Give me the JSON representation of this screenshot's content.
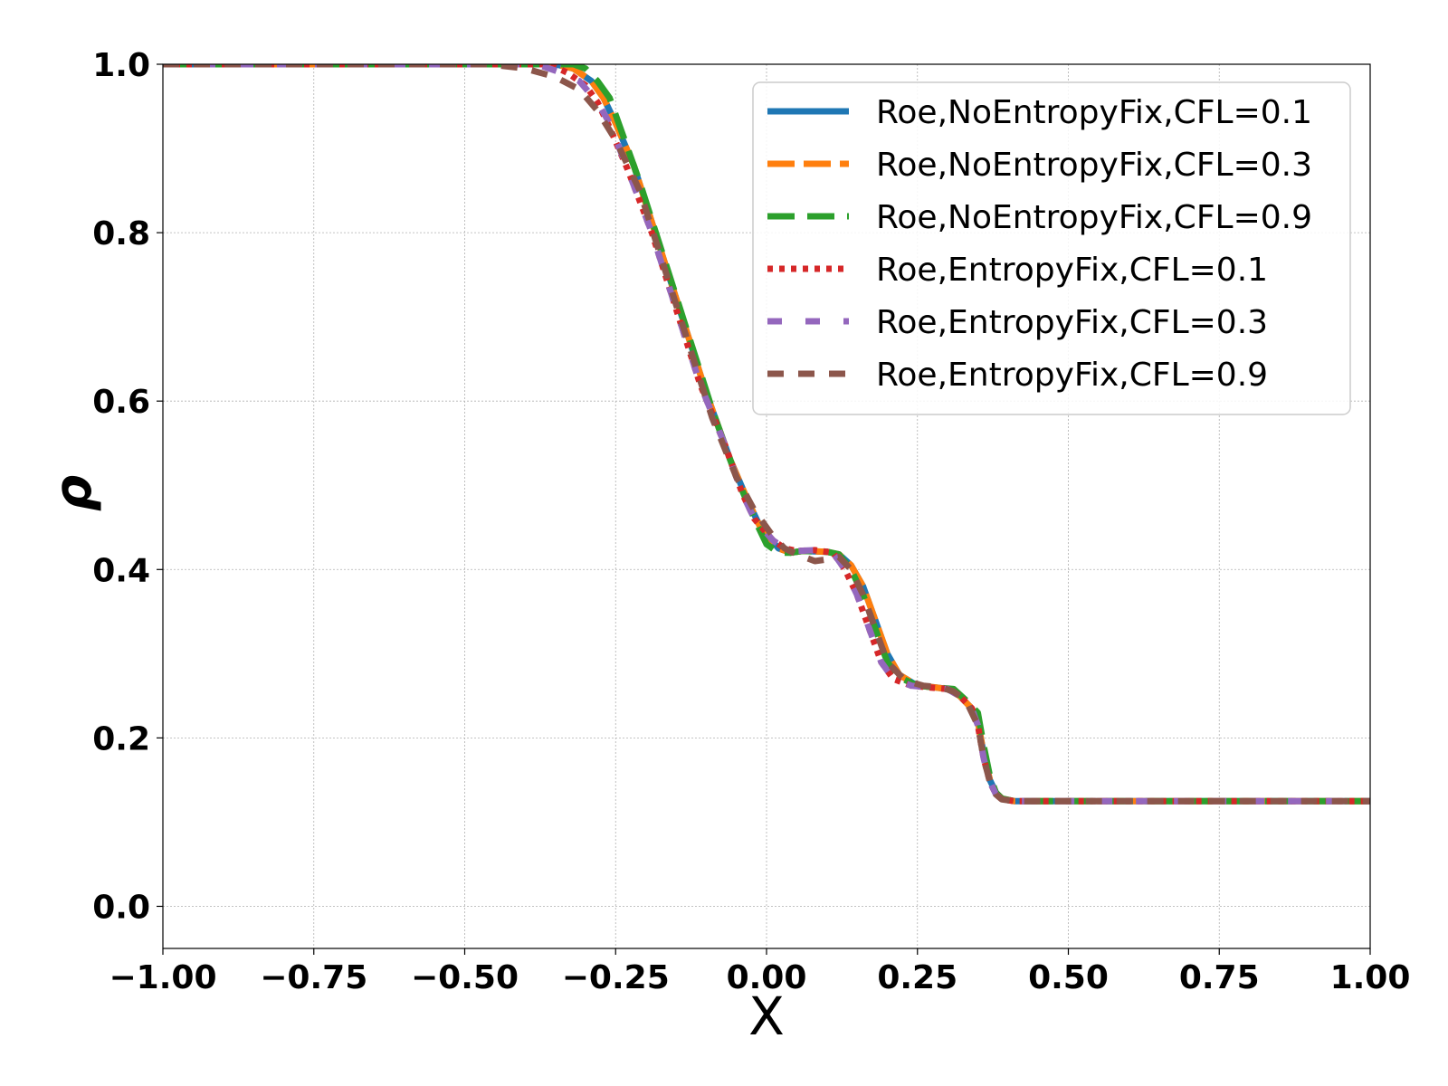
{
  "chart_data": {
    "type": "line",
    "xlabel": "X",
    "ylabel": "ρ",
    "xlim": [
      -1.0,
      1.0
    ],
    "ylim": [
      -0.05,
      1.0
    ],
    "grid": true,
    "legend_position": "top-right",
    "xticks": [
      "−1.00",
      "−0.75",
      "−0.50",
      "−0.25",
      "0.00",
      "0.25",
      "0.50",
      "0.75",
      "1.00"
    ],
    "xtick_values": [
      -1.0,
      -0.75,
      -0.5,
      -0.25,
      0.0,
      0.25,
      0.5,
      0.75,
      1.0
    ],
    "yticks": [
      "0.0",
      "0.2",
      "0.4",
      "0.6",
      "0.8",
      "1.0"
    ],
    "ytick_values": [
      0.0,
      0.2,
      0.4,
      0.6,
      0.8,
      1.0
    ],
    "series": [
      {
        "name": "Roe,NoEntropyFix,CFL=0.1",
        "color": "#1f77b4",
        "style": "solid",
        "x": [
          -1.0,
          -0.35,
          -0.32,
          -0.29,
          -0.27,
          -0.25,
          -0.22,
          -0.18,
          -0.14,
          -0.1,
          -0.06,
          -0.03,
          -0.01,
          0.02,
          0.04,
          0.06,
          0.1,
          0.12,
          0.14,
          0.16,
          0.18,
          0.2,
          0.22,
          0.25,
          0.28,
          0.3,
          0.32,
          0.34,
          0.35,
          0.36,
          0.37,
          0.38,
          0.39,
          0.41,
          0.43,
          1.0
        ],
        "y": [
          1.0,
          1.0,
          0.995,
          0.98,
          0.96,
          0.93,
          0.88,
          0.79,
          0.7,
          0.61,
          0.53,
          0.48,
          0.45,
          0.425,
          0.42,
          0.422,
          0.421,
          0.418,
          0.405,
          0.38,
          0.34,
          0.3,
          0.275,
          0.262,
          0.26,
          0.258,
          0.25,
          0.235,
          0.22,
          0.18,
          0.15,
          0.135,
          0.128,
          0.125,
          0.125,
          0.125
        ]
      },
      {
        "name": "Roe,NoEntropyFix,CFL=0.3",
        "color": "#ff7f0e",
        "style": "dashdot",
        "x": [
          -1.0,
          -0.35,
          -0.32,
          -0.29,
          -0.27,
          -0.25,
          -0.22,
          -0.18,
          -0.14,
          -0.1,
          -0.06,
          -0.03,
          -0.01,
          0.02,
          0.04,
          0.06,
          0.1,
          0.12,
          0.14,
          0.16,
          0.18,
          0.2,
          0.22,
          0.25,
          0.28,
          0.3,
          0.32,
          0.34,
          0.35,
          0.36,
          0.37,
          0.38,
          0.39,
          0.41,
          0.43,
          1.0
        ],
        "y": [
          1.0,
          1.0,
          0.995,
          0.98,
          0.96,
          0.93,
          0.88,
          0.79,
          0.7,
          0.61,
          0.53,
          0.48,
          0.45,
          0.425,
          0.42,
          0.422,
          0.421,
          0.418,
          0.405,
          0.38,
          0.34,
          0.3,
          0.275,
          0.262,
          0.26,
          0.258,
          0.25,
          0.235,
          0.22,
          0.18,
          0.15,
          0.135,
          0.128,
          0.125,
          0.125,
          0.125
        ]
      },
      {
        "name": "Roe,NoEntropyFix,CFL=0.9",
        "color": "#2ca02c",
        "style": "dashed",
        "x": [
          -1.0,
          -0.32,
          -0.3,
          -0.28,
          -0.26,
          -0.24,
          -0.21,
          -0.17,
          -0.13,
          -0.09,
          -0.05,
          -0.02,
          0.0,
          0.02,
          0.04,
          0.06,
          0.1,
          0.12,
          0.14,
          0.16,
          0.18,
          0.2,
          0.22,
          0.25,
          0.28,
          0.31,
          0.33,
          0.35,
          0.36,
          0.37,
          0.38,
          0.39,
          0.41,
          0.43,
          1.0
        ],
        "y": [
          1.0,
          1.0,
          0.995,
          0.98,
          0.96,
          0.92,
          0.86,
          0.77,
          0.68,
          0.59,
          0.51,
          0.46,
          0.43,
          0.42,
          0.42,
          0.422,
          0.421,
          0.418,
          0.4,
          0.37,
          0.33,
          0.29,
          0.272,
          0.262,
          0.26,
          0.258,
          0.245,
          0.23,
          0.19,
          0.155,
          0.135,
          0.128,
          0.125,
          0.125,
          0.125
        ]
      },
      {
        "name": "Roe,EntropyFix,CFL=0.1",
        "color": "#d62728",
        "style": "dotted",
        "x": [
          -1.0,
          -0.36,
          -0.33,
          -0.3,
          -0.28,
          -0.26,
          -0.23,
          -0.19,
          -0.15,
          -0.11,
          -0.07,
          -0.04,
          -0.02,
          0.01,
          0.03,
          0.05,
          0.08,
          0.11,
          0.13,
          0.15,
          0.17,
          0.19,
          0.21,
          0.24,
          0.27,
          0.3,
          0.32,
          0.34,
          0.35,
          0.36,
          0.37,
          0.38,
          0.39,
          0.41,
          0.43,
          1.0
        ],
        "y": [
          1.0,
          1.0,
          0.99,
          0.975,
          0.955,
          0.925,
          0.875,
          0.8,
          0.71,
          0.62,
          0.55,
          0.49,
          0.46,
          0.435,
          0.425,
          0.422,
          0.423,
          0.42,
          0.4,
          0.37,
          0.33,
          0.29,
          0.27,
          0.262,
          0.26,
          0.258,
          0.25,
          0.235,
          0.215,
          0.175,
          0.148,
          0.133,
          0.127,
          0.125,
          0.125,
          0.125
        ]
      },
      {
        "name": "Roe,EntropyFix,CFL=0.3",
        "color": "#9467bd",
        "style": "dashed",
        "x": [
          -1.0,
          -0.38,
          -0.34,
          -0.31,
          -0.28,
          -0.26,
          -0.23,
          -0.19,
          -0.15,
          -0.11,
          -0.07,
          -0.04,
          -0.02,
          0.01,
          0.03,
          0.05,
          0.08,
          0.11,
          0.13,
          0.15,
          0.17,
          0.19,
          0.21,
          0.24,
          0.27,
          0.3,
          0.32,
          0.34,
          0.35,
          0.36,
          0.37,
          0.38,
          0.39,
          0.41,
          0.43,
          1.0
        ],
        "y": [
          1.0,
          1.0,
          0.99,
          0.98,
          0.955,
          0.93,
          0.875,
          0.8,
          0.71,
          0.62,
          0.55,
          0.49,
          0.46,
          0.435,
          0.425,
          0.422,
          0.423,
          0.42,
          0.4,
          0.37,
          0.33,
          0.29,
          0.27,
          0.262,
          0.26,
          0.258,
          0.25,
          0.235,
          0.215,
          0.175,
          0.148,
          0.133,
          0.127,
          0.125,
          0.125,
          0.125
        ]
      },
      {
        "name": "Roe,EntropyFix,CFL=0.9",
        "color": "#8c564b",
        "style": "dashed",
        "x": [
          -1.0,
          -0.46,
          -0.4,
          -0.35,
          -0.31,
          -0.28,
          -0.25,
          -0.21,
          -0.17,
          -0.13,
          -0.09,
          -0.05,
          -0.02,
          0.01,
          0.03,
          0.05,
          0.08,
          0.1,
          0.12,
          0.14,
          0.16,
          0.18,
          0.2,
          0.23,
          0.26,
          0.29,
          0.31,
          0.33,
          0.35,
          0.36,
          0.37,
          0.38,
          0.39,
          0.41,
          0.43,
          1.0
        ],
        "y": [
          1.0,
          1.0,
          0.995,
          0.985,
          0.97,
          0.945,
          0.91,
          0.85,
          0.76,
          0.67,
          0.58,
          0.51,
          0.47,
          0.44,
          0.425,
          0.418,
          0.41,
          0.412,
          0.415,
          0.4,
          0.37,
          0.33,
          0.29,
          0.268,
          0.262,
          0.26,
          0.255,
          0.245,
          0.215,
          0.175,
          0.148,
          0.133,
          0.127,
          0.125,
          0.125,
          0.125
        ]
      }
    ]
  }
}
